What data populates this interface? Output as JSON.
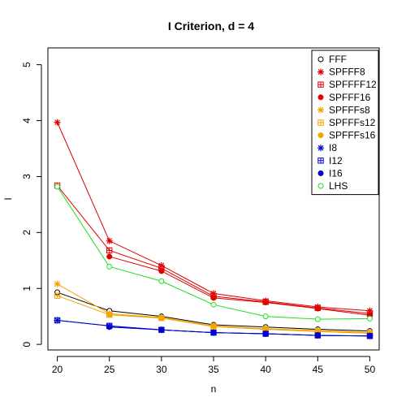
{
  "chart_data": {
    "type": "line",
    "title": "I Criterion, d = 4",
    "xlabel": "n",
    "ylabel": "I",
    "x": [
      20,
      25,
      30,
      35,
      40,
      45,
      50
    ],
    "xlim": [
      19.1,
      50.9
    ],
    "ylim": [
      -0.1,
      5.3
    ],
    "xticks": [
      "20",
      "25",
      "30",
      "35",
      "40",
      "45",
      "50"
    ],
    "yticks": [
      "0",
      "1",
      "2",
      "3",
      "4",
      "5"
    ],
    "legend_position": "top-right",
    "series": [
      {
        "name": "FFF",
        "color": "#000000",
        "marker": "circle-open",
        "values": [
          0.93,
          0.6,
          0.5,
          0.35,
          0.31,
          0.27,
          0.24
        ]
      },
      {
        "name": "SPFFF8",
        "color": "#DF0000",
        "marker": "star",
        "values": [
          3.97,
          1.85,
          1.41,
          0.91,
          0.78,
          0.67,
          0.6
        ]
      },
      {
        "name": "SPFFFF12",
        "color": "#DF0000",
        "marker": "square-plus",
        "values": [
          2.84,
          1.68,
          1.36,
          0.86,
          0.76,
          0.65,
          0.55
        ]
      },
      {
        "name": "SPFFF16",
        "color": "#DF0000",
        "marker": "circle-filled",
        "values": [
          null,
          1.57,
          1.31,
          0.83,
          0.75,
          0.64,
          0.52
        ]
      },
      {
        "name": "SPFFFs8",
        "color": "#F5A300",
        "marker": "star",
        "values": [
          1.08,
          0.55,
          0.48,
          0.33,
          0.28,
          0.25,
          0.21
        ]
      },
      {
        "name": "SPFFFs12",
        "color": "#F5A300",
        "marker": "square-plus",
        "values": [
          0.87,
          0.53,
          0.47,
          0.32,
          0.27,
          0.23,
          0.2
        ]
      },
      {
        "name": "SPFFFs16",
        "color": "#F5A300",
        "marker": "circle-filled",
        "values": [
          null,
          0.53,
          0.47,
          0.32,
          0.27,
          0.23,
          0.2
        ]
      },
      {
        "name": "I8",
        "color": "#0000CC",
        "marker": "star",
        "values": [
          0.43,
          0.33,
          0.26,
          0.21,
          0.19,
          0.16,
          0.15
        ]
      },
      {
        "name": "I12",
        "color": "#0000CC",
        "marker": "square-plus",
        "values": [
          0.43,
          0.33,
          0.26,
          0.21,
          0.19,
          0.16,
          0.15
        ]
      },
      {
        "name": "I16",
        "color": "#0000CC",
        "marker": "circle-filled",
        "values": [
          null,
          0.31,
          0.26,
          0.21,
          0.19,
          0.16,
          0.15
        ]
      },
      {
        "name": "LHS",
        "color": "#22DD22",
        "marker": "circle-open",
        "values": [
          2.82,
          1.39,
          1.13,
          0.71,
          0.5,
          0.45,
          0.46
        ]
      }
    ]
  }
}
